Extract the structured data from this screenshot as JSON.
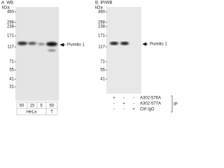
{
  "panel_a": {
    "title": "A. WB",
    "unit": "kDa",
    "markers": [
      "460",
      "268",
      "238",
      "171",
      "117",
      "71",
      "55",
      "41",
      "31"
    ],
    "band_label": "Pumilio 1",
    "lanes": [
      "50",
      "15",
      "5",
      "50"
    ],
    "groups": [
      "HeLa",
      "T"
    ]
  },
  "panel_b": {
    "title": "B. IP/WB",
    "unit": "kDa",
    "markers": [
      "460",
      "268",
      "238",
      "171",
      "117",
      "71",
      "55",
      "41"
    ],
    "band_label": "Pumilio 1",
    "rows": [
      {
        "label": "A302-576A",
        "marks": [
          "+",
          "-",
          "-"
        ]
      },
      {
        "label": "A302-577A",
        "marks": [
          "-",
          "+",
          "-"
        ]
      },
      {
        "label": "Ctrl IgG",
        "marks": [
          "-",
          "-",
          "+"
        ]
      }
    ],
    "ip_label": "IP"
  }
}
